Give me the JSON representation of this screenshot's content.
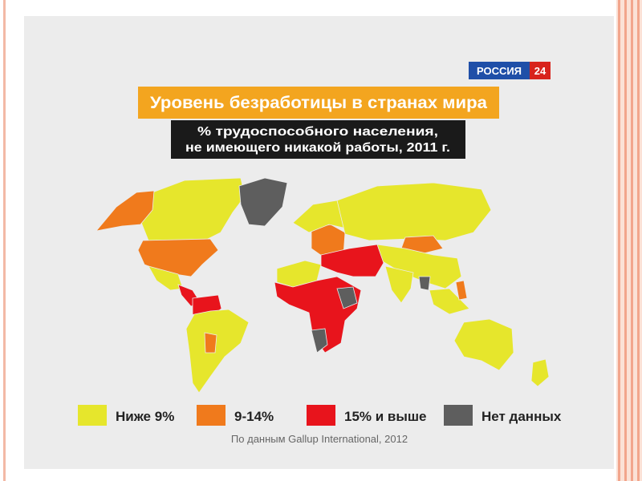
{
  "logo": {
    "name": "РОССИЯ",
    "number": "24"
  },
  "title": "Уровень безработицы в странах мира",
  "subtitle": [
    "% трудоспособного населения,",
    "не имеющего никакой работы, 2011 г."
  ],
  "legend": [
    {
      "label": "Ниже 9%",
      "color": "#e6e62c"
    },
    {
      "label": "9-14%",
      "color": "#f07a1c"
    },
    {
      "label": "15% и выше",
      "color": "#e8141c"
    },
    {
      "label": "Нет данных",
      "color": "#5e5e5e"
    }
  ],
  "source": "По данным Gallup International, 2012"
}
